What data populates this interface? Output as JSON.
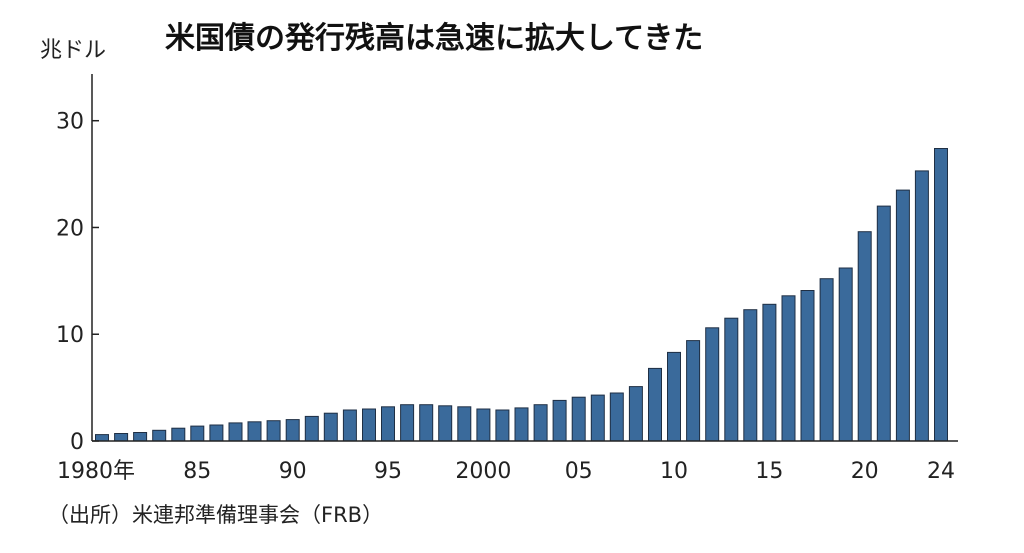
{
  "chart_data": {
    "type": "bar",
    "title": "米国債の発行残高は急速に拡大してきた",
    "ylabel": "兆ドル",
    "source": "（出所）米連邦準備理事会（FRB）",
    "ylim": [
      0,
      34
    ],
    "yticks": [
      0,
      10,
      20,
      30
    ],
    "x_tick_labels": [
      {
        "year": 1980,
        "label": "1980年"
      },
      {
        "year": 1985,
        "label": "85"
      },
      {
        "year": 1990,
        "label": "90"
      },
      {
        "year": 1995,
        "label": "95"
      },
      {
        "year": 2000,
        "label": "2000"
      },
      {
        "year": 2005,
        "label": "05"
      },
      {
        "year": 2010,
        "label": "10"
      },
      {
        "year": 2015,
        "label": "15"
      },
      {
        "year": 2020,
        "label": "20"
      },
      {
        "year": 2024,
        "label": "24"
      }
    ],
    "categories": [
      1980,
      1981,
      1982,
      1983,
      1984,
      1985,
      1986,
      1987,
      1988,
      1989,
      1990,
      1991,
      1992,
      1993,
      1994,
      1995,
      1996,
      1997,
      1998,
      1999,
      2000,
      2001,
      2002,
      2003,
      2004,
      2005,
      2006,
      2007,
      2008,
      2009,
      2010,
      2011,
      2012,
      2013,
      2014,
      2015,
      2016,
      2017,
      2018,
      2019,
      2020,
      2021,
      2022,
      2023,
      2024
    ],
    "values": [
      0.6,
      0.7,
      0.8,
      1.0,
      1.2,
      1.4,
      1.5,
      1.7,
      1.8,
      1.9,
      2.0,
      2.3,
      2.6,
      2.9,
      3.0,
      3.2,
      3.4,
      3.4,
      3.3,
      3.2,
      3.0,
      2.9,
      3.1,
      3.4,
      3.8,
      4.1,
      4.3,
      4.5,
      5.1,
      6.8,
      8.3,
      9.4,
      10.6,
      11.5,
      12.3,
      12.8,
      13.6,
      14.1,
      15.2,
      16.2,
      19.6,
      22.0,
      23.5,
      25.3,
      27.4
    ],
    "bar_color": "#3a6a9b",
    "bar_edge_color": "#1f2f44",
    "axis_color": "#222222"
  }
}
